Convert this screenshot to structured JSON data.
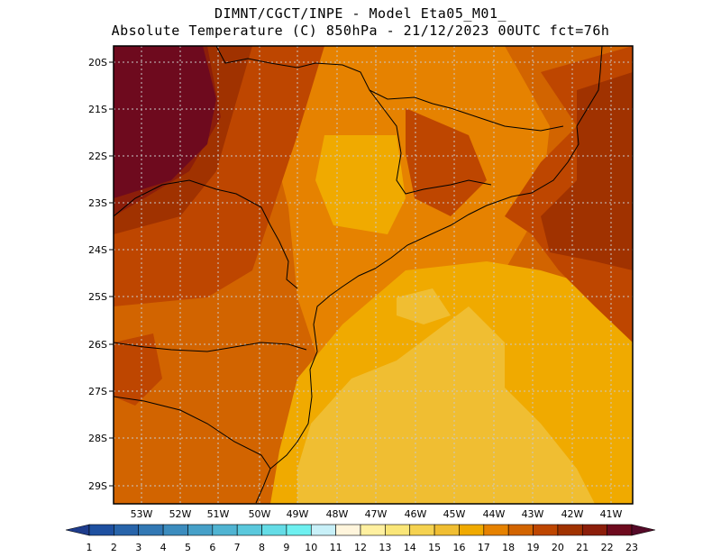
{
  "title": {
    "line1": "DIMNT/CGCT/INPE -  Model Eta05_M01_",
    "line2": "Absolute Temperature (C) 850hPa -  21/12/2023 00UTC fct=76h"
  },
  "lat_labels": [
    "20S",
    "21S",
    "22S",
    "23S",
    "24S",
    "25S",
    "26S",
    "27S",
    "28S",
    "29S"
  ],
  "lon_labels": [
    "53W",
    "52W",
    "51W",
    "50W",
    "49W",
    "48W",
    "47W",
    "46W",
    "45W",
    "44W",
    "43W",
    "42W",
    "41W"
  ],
  "colorbar": {
    "labels": [
      "1",
      "2",
      "3",
      "4",
      "5",
      "6",
      "7",
      "8",
      "9",
      "10",
      "11",
      "12",
      "13",
      "14",
      "15",
      "16",
      "17",
      "18",
      "19",
      "20",
      "21",
      "22",
      "23"
    ],
    "colors": [
      "#1e3c8c",
      "#1e50a0",
      "#2864aa",
      "#3278b4",
      "#3c8cbe",
      "#46a0c8",
      "#50b4d2",
      "#5ac8dc",
      "#64dce6",
      "#6ef0f0",
      "#c8f0f8",
      "#fff5dc",
      "#fff0a0",
      "#fae678",
      "#f5d250",
      "#f0be32",
      "#f0aa00",
      "#e68200",
      "#d26400",
      "#be4600",
      "#a03200",
      "#8c1e0a",
      "#6e0a1e",
      "#550a28"
    ]
  },
  "icons": {
    "colorbar_left": "triangle-left",
    "colorbar_right": "triangle-right"
  }
}
